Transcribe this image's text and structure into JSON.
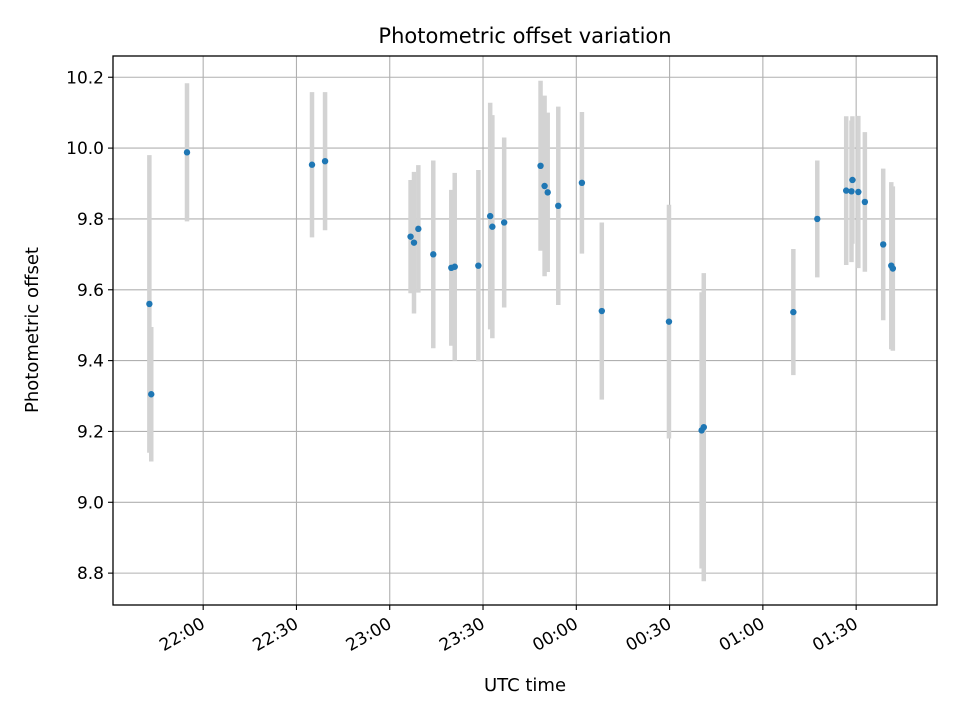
{
  "chart_data": {
    "type": "scatter",
    "title": "Photometric offset variation",
    "xlabel": "UTC time",
    "ylabel": "Photometric offset",
    "x_unit": "minutes (UTC clock; values >= 1440 are after midnight)",
    "xlim": [
      1291,
      1556
    ],
    "ylim": [
      8.71,
      10.26
    ],
    "x_ticks": [
      {
        "value": 1320,
        "label": "22:00"
      },
      {
        "value": 1350,
        "label": "22:30"
      },
      {
        "value": 1380,
        "label": "23:00"
      },
      {
        "value": 1410,
        "label": "23:30"
      },
      {
        "value": 1440,
        "label": "00:00"
      },
      {
        "value": 1470,
        "label": "00:30"
      },
      {
        "value": 1500,
        "label": "01:00"
      },
      {
        "value": 1530,
        "label": "01:30"
      }
    ],
    "y_ticks": [
      {
        "value": 8.8,
        "label": "8.8"
      },
      {
        "value": 9.0,
        "label": "9.0"
      },
      {
        "value": 9.2,
        "label": "9.2"
      },
      {
        "value": 9.4,
        "label": "9.4"
      },
      {
        "value": 9.6,
        "label": "9.6"
      },
      {
        "value": 9.8,
        "label": "9.8"
      },
      {
        "value": 10.0,
        "label": "10.0"
      },
      {
        "value": 10.2,
        "label": "10.2"
      }
    ],
    "grid": true,
    "marker_color": "#1f77b4",
    "errorbar_color": "#d3d3d3",
    "points": [
      {
        "x": 1302.7,
        "y": 9.56,
        "err": 0.42
      },
      {
        "x": 1303.3,
        "y": 9.305,
        "err": 0.19
      },
      {
        "x": 1314.8,
        "y": 9.988,
        "err": 0.195
      },
      {
        "x": 1355.0,
        "y": 9.953,
        "err": 0.205
      },
      {
        "x": 1359.2,
        "y": 9.963,
        "err": 0.195
      },
      {
        "x": 1386.7,
        "y": 9.75,
        "err": 0.16
      },
      {
        "x": 1387.8,
        "y": 9.733,
        "err": 0.2
      },
      {
        "x": 1389.2,
        "y": 9.772,
        "err": 0.18
      },
      {
        "x": 1394.0,
        "y": 9.7,
        "err": 0.265
      },
      {
        "x": 1399.8,
        "y": 9.662,
        "err": 0.22
      },
      {
        "x": 1400.9,
        "y": 9.665,
        "err": 0.265
      },
      {
        "x": 1408.5,
        "y": 9.668,
        "err": 0.27
      },
      {
        "x": 1412.3,
        "y": 9.808,
        "err": 0.32
      },
      {
        "x": 1413.0,
        "y": 9.778,
        "err": 0.315
      },
      {
        "x": 1416.8,
        "y": 9.79,
        "err": 0.24
      },
      {
        "x": 1428.5,
        "y": 9.95,
        "err": 0.24
      },
      {
        "x": 1429.8,
        "y": 9.893,
        "err": 0.255
      },
      {
        "x": 1430.8,
        "y": 9.875,
        "err": 0.225
      },
      {
        "x": 1434.2,
        "y": 9.837,
        "err": 0.28
      },
      {
        "x": 1441.8,
        "y": 9.902,
        "err": 0.2
      },
      {
        "x": 1448.2,
        "y": 9.54,
        "err": 0.25
      },
      {
        "x": 1469.8,
        "y": 9.51,
        "err": 0.33
      },
      {
        "x": 1480.3,
        "y": 9.203,
        "err": 0.39
      },
      {
        "x": 1481.0,
        "y": 9.212,
        "err": 0.435
      },
      {
        "x": 1509.8,
        "y": 9.537,
        "err": 0.178
      },
      {
        "x": 1517.5,
        "y": 9.8,
        "err": 0.165
      },
      {
        "x": 1526.8,
        "y": 9.88,
        "err": 0.21
      },
      {
        "x": 1528.5,
        "y": 9.878,
        "err": 0.2
      },
      {
        "x": 1528.8,
        "y": 9.91,
        "err": 0.18
      },
      {
        "x": 1530.7,
        "y": 9.876,
        "err": 0.215
      },
      {
        "x": 1532.8,
        "y": 9.848,
        "err": 0.197
      },
      {
        "x": 1538.7,
        "y": 9.728,
        "err": 0.214
      },
      {
        "x": 1541.3,
        "y": 9.668,
        "err": 0.236
      },
      {
        "x": 1541.8,
        "y": 9.66,
        "err": 0.232
      }
    ]
  }
}
